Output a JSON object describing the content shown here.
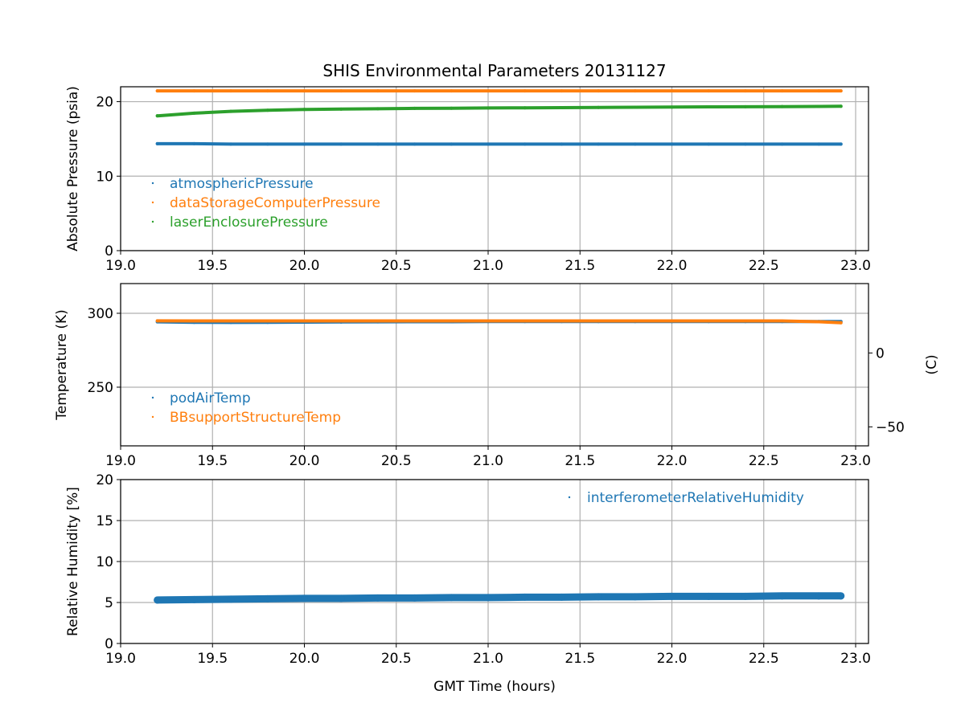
{
  "chart_data": [
    {
      "type": "scatter",
      "title": "SHIS Environmental Parameters 20131127",
      "xlabel": "",
      "ylabel": "Absolute Pressure (psia)",
      "xlim": [
        19.0,
        23.07
      ],
      "ylim": [
        0,
        22
      ],
      "xticks": [
        "19.0",
        "19.5",
        "20.0",
        "20.5",
        "21.0",
        "21.5",
        "22.0",
        "22.5",
        "23.0"
      ],
      "yticks": [
        0,
        10,
        20
      ],
      "grid": true,
      "legend": "lower-left",
      "x": [
        19.2,
        19.4,
        19.6,
        19.8,
        20.0,
        20.2,
        20.4,
        20.6,
        20.8,
        21.0,
        21.2,
        21.4,
        21.6,
        21.8,
        22.0,
        22.2,
        22.4,
        22.6,
        22.8,
        22.92
      ],
      "series": [
        {
          "name": "atmosphericPressure",
          "color": "#1f77b4",
          "values": [
            14.35,
            14.35,
            14.3,
            14.3,
            14.3,
            14.3,
            14.3,
            14.3,
            14.3,
            14.3,
            14.3,
            14.3,
            14.3,
            14.3,
            14.3,
            14.3,
            14.3,
            14.3,
            14.3,
            14.3
          ]
        },
        {
          "name": "dataStorageComputerPressure",
          "color": "#ff7f0e",
          "values": [
            21.45,
            21.45,
            21.45,
            21.45,
            21.45,
            21.45,
            21.45,
            21.45,
            21.45,
            21.45,
            21.45,
            21.45,
            21.45,
            21.45,
            21.45,
            21.45,
            21.45,
            21.45,
            21.45,
            21.45
          ]
        },
        {
          "name": "laserEnclosurePressure",
          "color": "#2ca02c",
          "values": [
            18.1,
            18.45,
            18.7,
            18.85,
            18.95,
            19.0,
            19.05,
            19.1,
            19.12,
            19.15,
            19.17,
            19.2,
            19.22,
            19.25,
            19.27,
            19.3,
            19.32,
            19.34,
            19.36,
            19.38
          ]
        }
      ]
    },
    {
      "type": "scatter",
      "xlabel": "",
      "ylabel": "Temperature (K)",
      "ylabel_right": "(C)",
      "xlim": [
        19.0,
        23.07
      ],
      "ylim": [
        210.3,
        320.1
      ],
      "xticks": [
        "19.0",
        "19.5",
        "20.0",
        "20.5",
        "21.0",
        "21.5",
        "22.0",
        "22.5",
        "23.0"
      ],
      "yticks": [
        250,
        300
      ],
      "yticks_right": [
        "0",
        "−50"
      ],
      "yticks_right_values_C": [
        0,
        -50
      ],
      "grid": true,
      "legend": "lower-left",
      "x": [
        19.2,
        19.4,
        19.6,
        19.8,
        20.0,
        20.2,
        20.4,
        20.6,
        20.8,
        21.0,
        21.2,
        21.4,
        21.6,
        21.8,
        22.0,
        22.2,
        22.4,
        22.6,
        22.8,
        22.92
      ],
      "series": [
        {
          "name": "podAirTemp",
          "color": "#1f77b4",
          "values": [
            294.2,
            293.9,
            293.8,
            293.9,
            294.0,
            294.1,
            294.2,
            294.3,
            294.3,
            294.4,
            294.4,
            294.4,
            294.4,
            294.4,
            294.4,
            294.4,
            294.4,
            294.4,
            294.4,
            294.4
          ]
        },
        {
          "name": "BBsupportStructureTemp",
          "color": "#ff7f0e",
          "values": [
            294.9,
            294.8,
            294.8,
            294.8,
            294.8,
            294.8,
            294.8,
            294.8,
            294.8,
            294.8,
            294.8,
            294.8,
            294.8,
            294.8,
            294.8,
            294.8,
            294.8,
            294.8,
            294.3,
            293.6
          ]
        }
      ]
    },
    {
      "type": "scatter",
      "xlabel": "GMT Time (hours)",
      "ylabel": "Relative Humidity [%]",
      "xlim": [
        19.0,
        23.07
      ],
      "ylim": [
        0,
        20
      ],
      "xticks": [
        "19.0",
        "19.5",
        "20.0",
        "20.5",
        "21.0",
        "21.5",
        "22.0",
        "22.5",
        "23.0"
      ],
      "yticks": [
        0,
        5,
        10,
        15,
        20
      ],
      "grid": true,
      "legend": "upper-right",
      "x": [
        19.2,
        19.4,
        19.6,
        19.8,
        20.0,
        20.2,
        20.4,
        20.6,
        20.8,
        21.0,
        21.2,
        21.4,
        21.6,
        21.8,
        22.0,
        22.2,
        22.4,
        22.6,
        22.8,
        22.92
      ],
      "series": [
        {
          "name": "interferometerRelativeHumidity",
          "color": "#1f77b4",
          "values": [
            5.3,
            5.35,
            5.4,
            5.45,
            5.5,
            5.5,
            5.55,
            5.55,
            5.6,
            5.6,
            5.65,
            5.65,
            5.7,
            5.7,
            5.75,
            5.75,
            5.75,
            5.8,
            5.8,
            5.8
          ]
        }
      ]
    }
  ]
}
